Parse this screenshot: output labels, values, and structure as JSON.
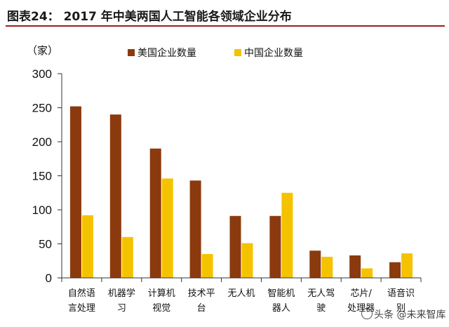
{
  "figure": {
    "title": "图表24：   2017 年中美两国人工智能各领域企业分布"
  },
  "colors": {
    "us": "#8b3a0e",
    "cn": "#f5c200",
    "rule": "#a01e1e",
    "axis": "#333333"
  },
  "watermark": {
    "text": "头条 @未来智库",
    "icon": "circle-logo-icon"
  },
  "chart_data": {
    "type": "bar",
    "title": "",
    "unit_label": "（家）",
    "xlabel": "",
    "ylabel": "",
    "ylim": [
      0,
      300
    ],
    "yticks": [
      0,
      50,
      100,
      150,
      200,
      250,
      300
    ],
    "grid": false,
    "legend_position": "top",
    "categories": [
      [
        "自然语",
        "言处理"
      ],
      [
        "机器学",
        "习"
      ],
      [
        "计算机",
        "视觉"
      ],
      [
        "技术平",
        "台"
      ],
      [
        "无人机"
      ],
      [
        "智能机",
        "器人"
      ],
      [
        "无人驾",
        "驶"
      ],
      [
        "芯片/",
        "处理器"
      ],
      [
        "语音识",
        "别"
      ]
    ],
    "series": [
      {
        "name": "美国企业数量",
        "values": [
          252,
          240,
          190,
          143,
          91,
          91,
          40,
          33,
          23
        ]
      },
      {
        "name": "中国企业数量",
        "values": [
          92,
          60,
          146,
          35,
          51,
          125,
          31,
          14,
          36
        ]
      }
    ]
  }
}
